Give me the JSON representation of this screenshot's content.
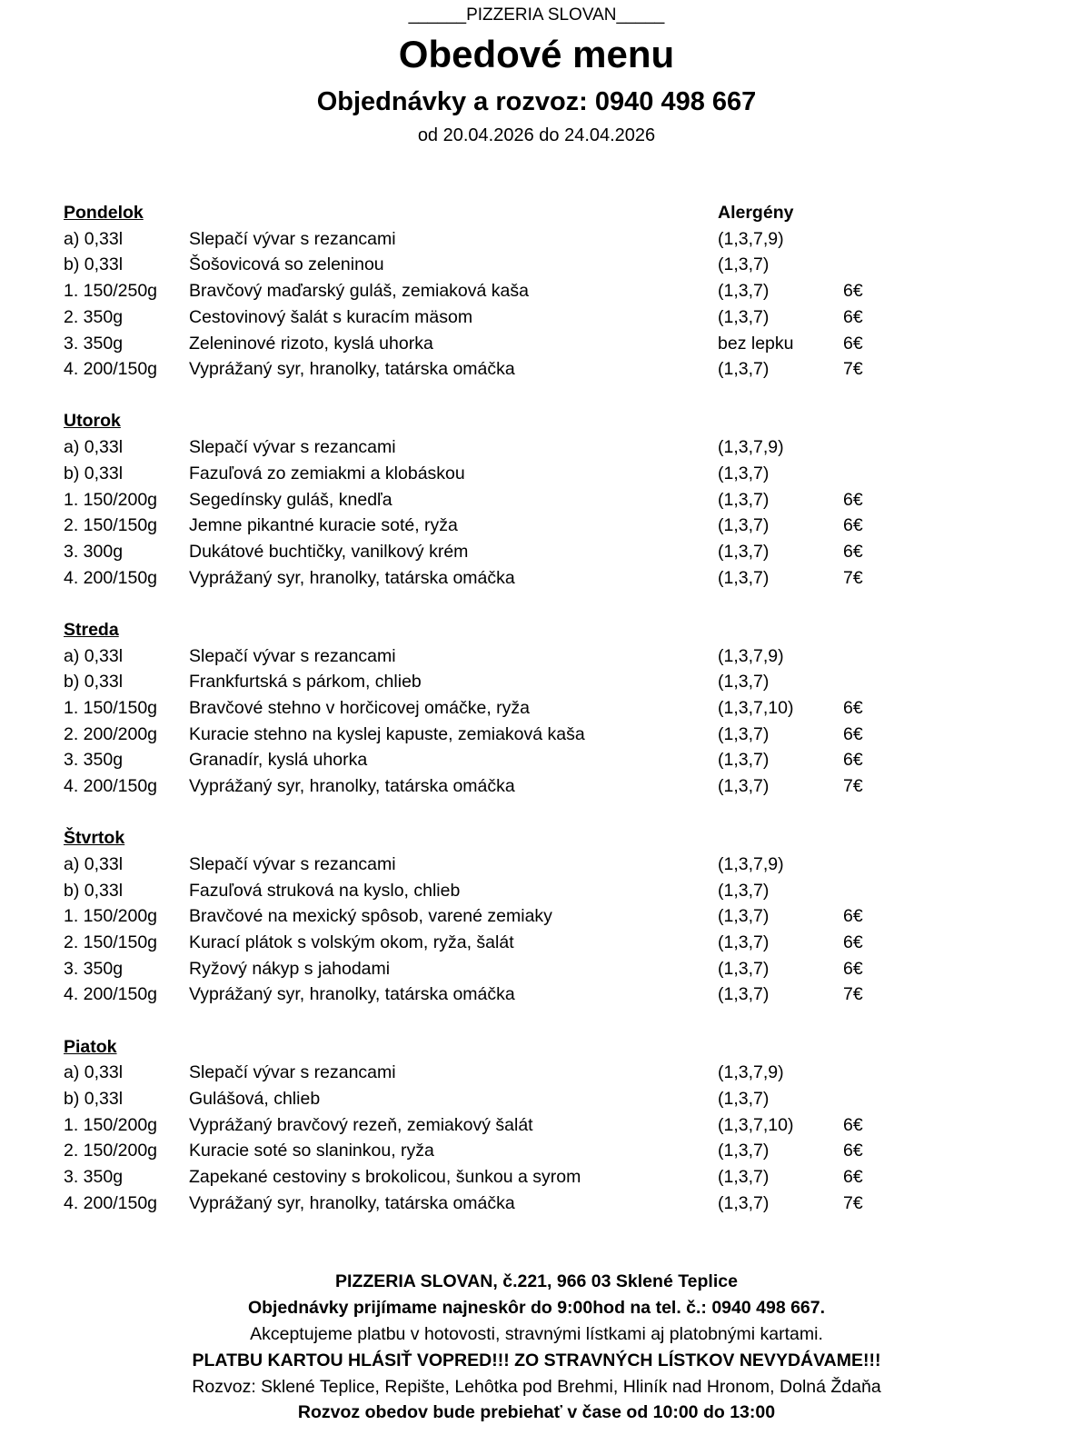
{
  "header": {
    "top": "______PIZZERIA SLOVAN_____",
    "title": "Obedové menu",
    "phone": "Objednávky a rozvoz: 0940 498 667",
    "dates": "od 20.04.2026  do 24.04.2026",
    "allergens_label": "Alergény"
  },
  "days": [
    {
      "name": "Pondelok",
      "items": [
        {
          "size": "a) 0,33l",
          "name": "Slepačí vývar s rezancami",
          "allergens": "(1,3,7,9)",
          "price": ""
        },
        {
          "size": "b) 0,33l",
          "name": "Šošovicová so zeleninou",
          "allergens": "(1,3,7)",
          "price": ""
        },
        {
          "size": "1. 150/250g",
          "name": "Bravčový maďarský guláš, zemiaková kaša",
          "allergens": "(1,3,7)",
          "price": "6€"
        },
        {
          "size": "2. 350g",
          "name": "Cestovinový šalát s kuracím mäsom",
          "allergens": "(1,3,7)",
          "price": "6€"
        },
        {
          "size": "3. 350g",
          "name": "Zeleninové rizoto, kyslá uhorka",
          "allergens": "bez lepku",
          "price": "6€"
        },
        {
          "size": "4. 200/150g",
          "name": "Vyprážaný syr, hranolky, tatárska omáčka",
          "allergens": "(1,3,7)",
          "price": "7€"
        }
      ]
    },
    {
      "name": "Utorok",
      "items": [
        {
          "size": "a) 0,33l",
          "name": "Slepačí vývar s rezancami",
          "allergens": "(1,3,7,9)",
          "price": ""
        },
        {
          "size": "b) 0,33l",
          "name": "Fazuľová zo zemiakmi a klobáskou",
          "allergens": "(1,3,7)",
          "price": ""
        },
        {
          "size": "1. 150/200g",
          "name": "Segedínsky guláš, knedľa",
          "allergens": "(1,3,7)",
          "price": "6€"
        },
        {
          "size": "2. 150/150g",
          "name": "Jemne pikantné kuracie soté, ryža",
          "allergens": "(1,3,7)",
          "price": "6€"
        },
        {
          "size": "3. 300g",
          "name": "Dukátové buchtičky, vanilkový krém",
          "allergens": "(1,3,7)",
          "price": "6€"
        },
        {
          "size": "4. 200/150g",
          "name": "Vyprážaný syr, hranolky, tatárska omáčka",
          "allergens": "(1,3,7)",
          "price": "7€"
        }
      ]
    },
    {
      "name": "Streda",
      "items": [
        {
          "size": "a) 0,33l",
          "name": "Slepačí vývar s rezancami",
          "allergens": "(1,3,7,9)",
          "price": ""
        },
        {
          "size": "b) 0,33l",
          "name": "Frankfurtská s párkom, chlieb",
          "allergens": "(1,3,7)",
          "price": ""
        },
        {
          "size": "1. 150/150g",
          "name": "Bravčové stehno v horčicovej omáčke, ryža",
          "allergens": "(1,3,7,10)",
          "price": "6€"
        },
        {
          "size": "2. 200/200g",
          "name": "Kuracie stehno na kyslej kapuste, zemiaková kaša",
          "allergens": "(1,3,7)",
          "price": "6€"
        },
        {
          "size": "3. 350g",
          "name": "Granadír, kyslá uhorka",
          "allergens": "(1,3,7)",
          "price": "6€"
        },
        {
          "size": "4. 200/150g",
          "name": "Vyprážaný syr, hranolky, tatárska omáčka",
          "allergens": "(1,3,7)",
          "price": "7€"
        }
      ]
    },
    {
      "name": "Štvrtok",
      "items": [
        {
          "size": "a) 0,33l",
          "name": "Slepačí vývar s rezancami",
          "allergens": "(1,3,7,9)",
          "price": ""
        },
        {
          "size": "b) 0,33l",
          "name": "Fazuľová struková na kyslo, chlieb",
          "allergens": "(1,3,7)",
          "price": ""
        },
        {
          "size": "1. 150/200g",
          "name": "Bravčové na mexický spôsob, varené zemiaky",
          "allergens": "(1,3,7)",
          "price": "6€"
        },
        {
          "size": "2. 150/150g",
          "name": "Kurací plátok s volským okom, ryža, šalát",
          "allergens": "(1,3,7)",
          "price": "6€"
        },
        {
          "size": "3. 350g",
          "name": "Ryžový nákyp s jahodami",
          "allergens": "(1,3,7)",
          "price": "6€"
        },
        {
          "size": "4. 200/150g",
          "name": "Vyprážaný syr, hranolky, tatárska omáčka",
          "allergens": "(1,3,7)",
          "price": "7€"
        }
      ]
    },
    {
      "name": "Piatok",
      "items": [
        {
          "size": "a) 0,33l",
          "name": "Slepačí vývar s rezancami",
          "allergens": "(1,3,7,9)",
          "price": ""
        },
        {
          "size": "b) 0,33l",
          "name": "Gulášová, chlieb",
          "allergens": "(1,3,7)",
          "price": ""
        },
        {
          "size": "1. 150/200g",
          "name": "Vyprážaný bravčový rezeň, zemiakový šalát",
          "allergens": "(1,3,7,10)",
          "price": "6€"
        },
        {
          "size": "2. 150/200g",
          "name": "Kuracie soté so slaninkou, ryža",
          "allergens": "(1,3,7)",
          "price": "6€"
        },
        {
          "size": "3. 350g",
          "name": "Zapekané cestoviny s brokolicou, šunkou a syrom",
          "allergens": "(1,3,7)",
          "price": "6€"
        },
        {
          "size": "4. 200/150g",
          "name": "Vyprážaný syr, hranolky, tatárska omáčka",
          "allergens": "(1,3,7)",
          "price": "7€"
        }
      ]
    }
  ],
  "footer": {
    "address": "PIZZERIA SLOVAN, č.221, 966 03 Sklené Teplice",
    "orders": "Objednávky prijímame najneskôr do 9:00hod na tel. č.: 0940 498 667.",
    "payment": "Akceptujeme platbu v hotovosti, stravnými lístkami aj platobnými kartami.",
    "warning": "PLATBU KARTOU HLÁSIŤ VOPRED!!! ZO STRAVNÝCH LÍSTKOV NEVYDÁVAME!!!",
    "delivery_area": "Rozvoz: Sklené Teplice, Repište, Lehôtka pod Brehmi, Hliník nad Hronom, Dolná Ždaňa",
    "delivery_time": "Rozvoz obedov bude prebiehať v čase od 10:00 do 13:00"
  }
}
